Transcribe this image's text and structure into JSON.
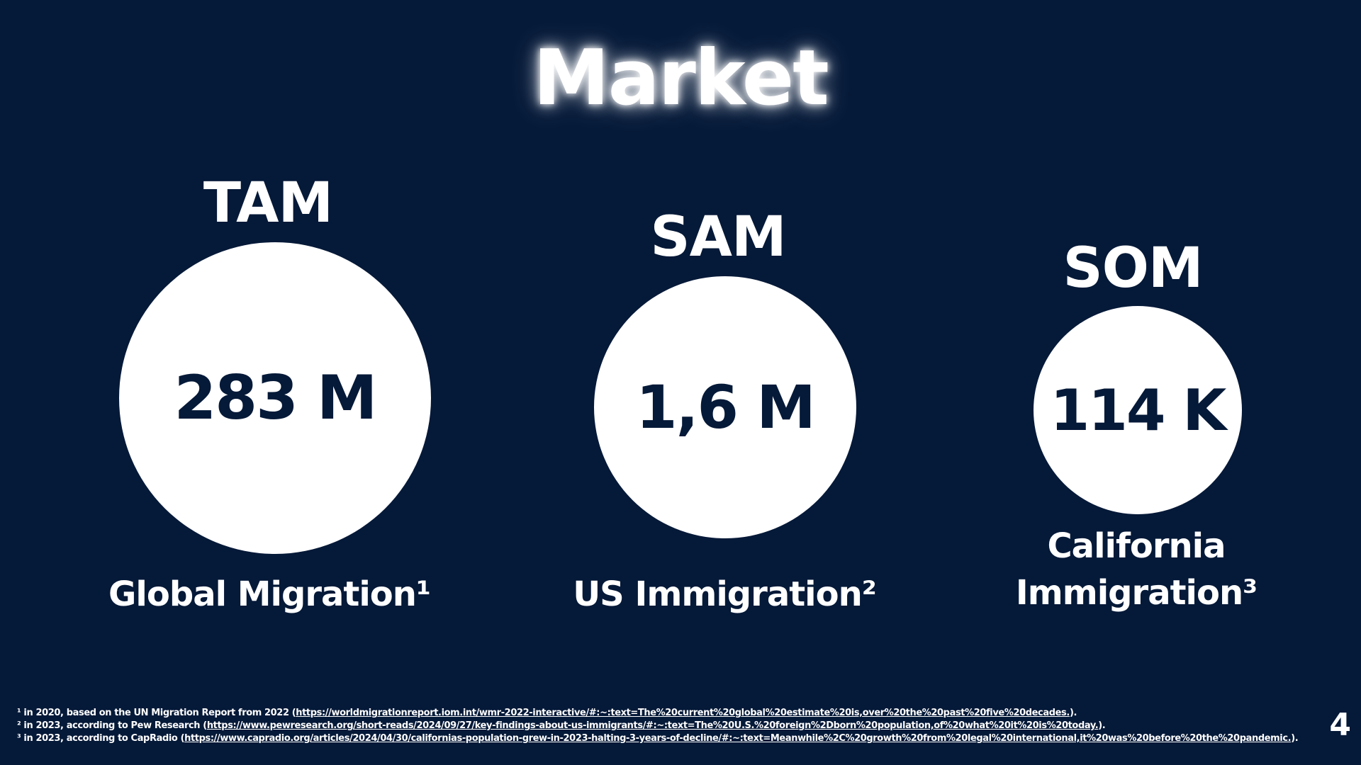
{
  "slide": {
    "title": "Market",
    "page_number": "4",
    "columns": [
      {
        "label": "TAM",
        "value": "283 M",
        "caption_line1": "Global Migration¹",
        "caption_line2": ""
      },
      {
        "label": "SAM",
        "value": "1,6 M",
        "caption_line1": "US Immigration²",
        "caption_line2": ""
      },
      {
        "label": "SOM",
        "value": "114 K",
        "caption_line1": "California",
        "caption_line2": "Immigration³"
      }
    ],
    "footnotes": [
      {
        "prefix": "¹ in 2020, based on the UN Migration Report from 2022 (",
        "link": "https://worldmigrationreport.iom.int/wmr-2022-interactive/#:~:text=The%20current%20global%20estimate%20is,over%20the%20past%20five%20decades.",
        "suffix": ")."
      },
      {
        "prefix": "² in 2023, according to Pew Research (",
        "link": "https://www.pewresearch.org/short-reads/2024/09/27/key-findings-about-us-immigrants/#:~:text=The%20U.S.%20foreign%2Dborn%20population,of%20what%20it%20is%20today.",
        "suffix": ")."
      },
      {
        "prefix": "³ in 2023, according to CapRadio (",
        "link": "https://www.capradio.org/articles/2024/04/30/californias-population-grew-in-2023-halting-3-years-of-decline/#:~:text=Meanwhile%2C%20growth%20from%20legal%20international,it%20was%20before%20the%20pandemic.",
        "suffix": ")."
      }
    ]
  }
}
